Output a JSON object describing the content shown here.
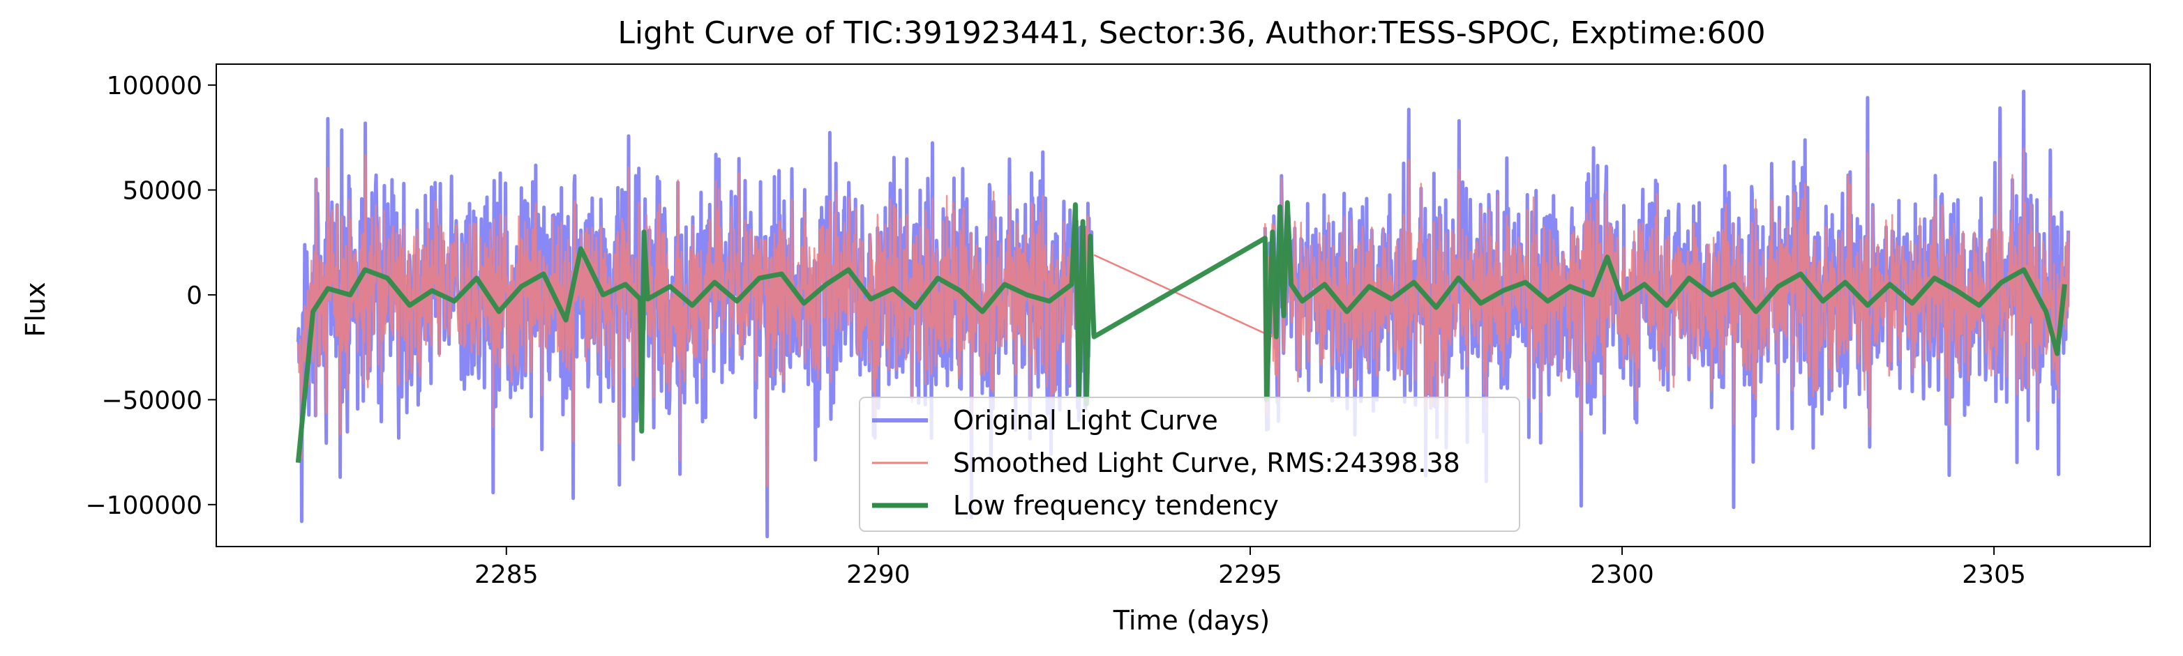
{
  "chart_data": {
    "type": "line",
    "title": "Light Curve of TIC:391923441, Sector:36, Author:TESS-SPOC, Exptime:600",
    "xlabel": "Time (days)",
    "ylabel": "Flux",
    "xlim": [
      2281.1,
      2307.1
    ],
    "ylim": [
      -120000,
      110000
    ],
    "xticks": [
      2285,
      2290,
      2295,
      2300,
      2305
    ],
    "yticks": [
      -100000,
      -50000,
      0,
      50000,
      100000
    ],
    "ytick_labels": [
      "−100000",
      "−50000",
      "0",
      "50000",
      "100000"
    ],
    "grid": false,
    "legend_position": "lower center",
    "observation_segments": [
      [
        2282.2,
        2292.9
      ],
      [
        2295.2,
        2306.0
      ]
    ],
    "series": [
      {
        "name": "Original Light Curve",
        "color": "#7b7bf5",
        "style": "line",
        "typical_range": [
          -60000,
          60000
        ],
        "extremes": [
          {
            "x": 2282.25,
            "y": -108000
          },
          {
            "x": 2282.6,
            "y": 84000
          },
          {
            "x": 2285.9,
            "y": -97000
          },
          {
            "x": 2303.3,
            "y": 94000
          },
          {
            "x": 2305.4,
            "y": 97000
          },
          {
            "x": 2304.4,
            "y": -86000
          }
        ]
      },
      {
        "name": "Smoothed Light Curve, RMS:24398.38",
        "color": "#f08080",
        "style": "line",
        "typical_range": [
          -45000,
          45000
        ],
        "gap_line": [
          [
            2292.9,
            19000
          ],
          [
            2295.3,
            -20000
          ]
        ]
      },
      {
        "name": "Low frequency tendency",
        "color": "#2e8b47",
        "style": "thick-line",
        "points": [
          [
            2282.2,
            -80000
          ],
          [
            2282.4,
            -8000
          ],
          [
            2282.6,
            3000
          ],
          [
            2282.9,
            0
          ],
          [
            2283.1,
            12000
          ],
          [
            2283.4,
            8000
          ],
          [
            2283.7,
            -5000
          ],
          [
            2284.0,
            2000
          ],
          [
            2284.3,
            -3000
          ],
          [
            2284.6,
            8000
          ],
          [
            2284.9,
            -8000
          ],
          [
            2285.2,
            4000
          ],
          [
            2285.5,
            10000
          ],
          [
            2285.8,
            -12000
          ],
          [
            2286.0,
            22000
          ],
          [
            2286.3,
            0
          ],
          [
            2286.6,
            5000
          ],
          [
            2286.8,
            -2000
          ],
          [
            2286.82,
            -65000
          ],
          [
            2286.85,
            30000
          ],
          [
            2286.9,
            -2000
          ],
          [
            2287.2,
            4000
          ],
          [
            2287.5,
            -5000
          ],
          [
            2287.8,
            6000
          ],
          [
            2288.1,
            -3000
          ],
          [
            2288.4,
            8000
          ],
          [
            2288.7,
            10000
          ],
          [
            2289.0,
            -4000
          ],
          [
            2289.3,
            5000
          ],
          [
            2289.6,
            12000
          ],
          [
            2289.9,
            -2000
          ],
          [
            2290.2,
            3000
          ],
          [
            2290.5,
            -6000
          ],
          [
            2290.8,
            8000
          ],
          [
            2291.1,
            2000
          ],
          [
            2291.4,
            -8000
          ],
          [
            2291.7,
            5000
          ],
          [
            2292.0,
            0
          ],
          [
            2292.3,
            -3000
          ],
          [
            2292.6,
            5000
          ],
          [
            2292.65,
            43000
          ],
          [
            2292.7,
            -48000
          ],
          [
            2292.75,
            35000
          ],
          [
            2292.8,
            -52000
          ],
          [
            2292.85,
            28000
          ],
          [
            2292.9,
            -20000
          ],
          [
            2295.2,
            27000
          ],
          [
            2295.22,
            -50000
          ],
          [
            2295.3,
            30000
          ],
          [
            2295.35,
            -20000
          ],
          [
            2295.4,
            42000
          ],
          [
            2295.45,
            -10000
          ],
          [
            2295.5,
            44000
          ],
          [
            2295.55,
            5000
          ],
          [
            2295.7,
            -3000
          ],
          [
            2296.0,
            5000
          ],
          [
            2296.3,
            -8000
          ],
          [
            2296.6,
            4000
          ],
          [
            2296.9,
            -2000
          ],
          [
            2297.2,
            6000
          ],
          [
            2297.5,
            -6000
          ],
          [
            2297.8,
            8000
          ],
          [
            2298.1,
            -4000
          ],
          [
            2298.4,
            2000
          ],
          [
            2298.7,
            6000
          ],
          [
            2299.0,
            -3000
          ],
          [
            2299.3,
            4000
          ],
          [
            2299.6,
            0
          ],
          [
            2299.8,
            18000
          ],
          [
            2300.0,
            -2000
          ],
          [
            2300.3,
            5000
          ],
          [
            2300.6,
            -5000
          ],
          [
            2300.9,
            8000
          ],
          [
            2301.2,
            0
          ],
          [
            2301.5,
            5000
          ],
          [
            2301.8,
            -8000
          ],
          [
            2302.1,
            4000
          ],
          [
            2302.4,
            10000
          ],
          [
            2302.7,
            -3000
          ],
          [
            2303.0,
            6000
          ],
          [
            2303.3,
            -5000
          ],
          [
            2303.6,
            5000
          ],
          [
            2303.9,
            -4000
          ],
          [
            2304.2,
            8000
          ],
          [
            2304.5,
            2000
          ],
          [
            2304.8,
            -5000
          ],
          [
            2305.1,
            6000
          ],
          [
            2305.4,
            12000
          ],
          [
            2305.7,
            -8000
          ],
          [
            2305.85,
            -28000
          ],
          [
            2305.95,
            5000
          ]
        ]
      }
    ]
  }
}
